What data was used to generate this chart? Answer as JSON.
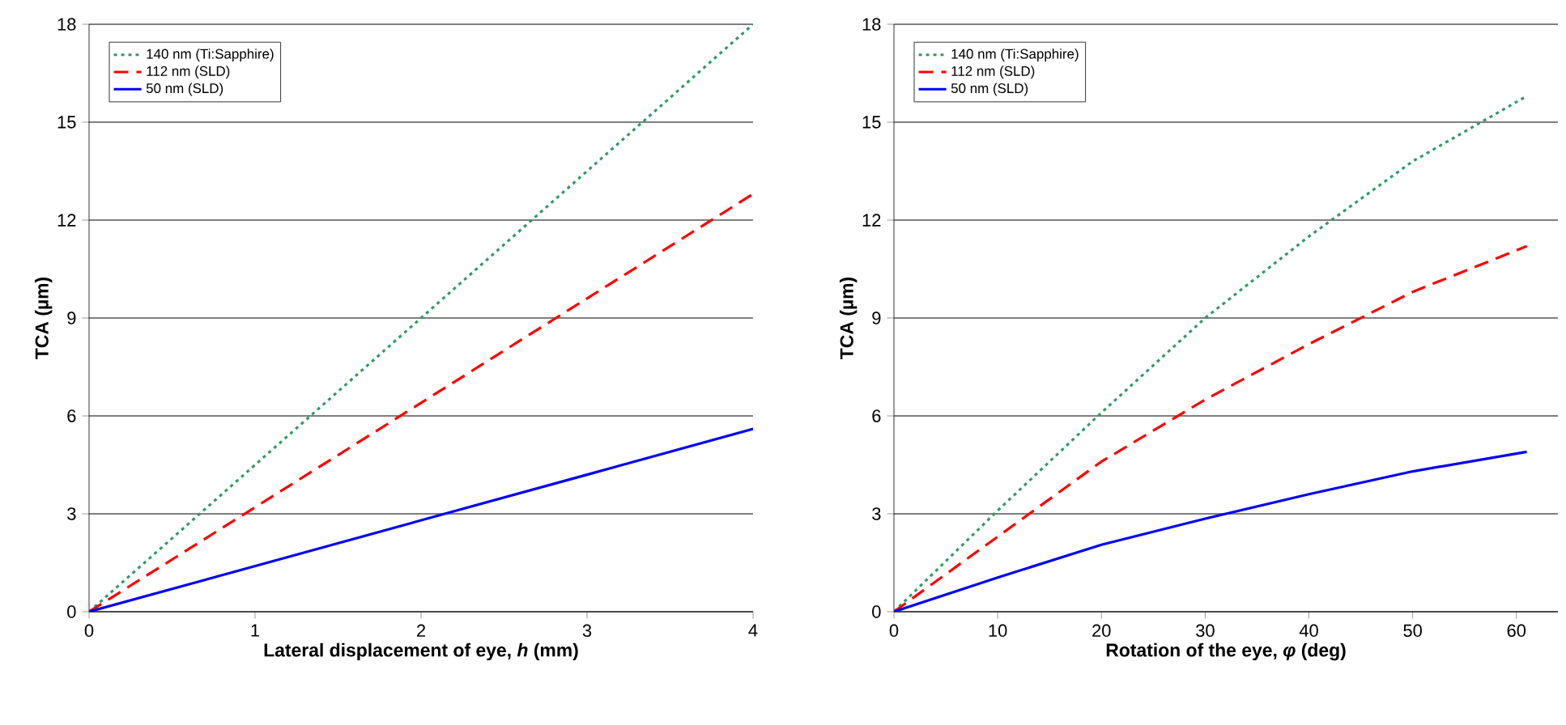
{
  "chart_data": [
    {
      "type": "line",
      "xlabel": "Lateral displacement of eye, *h* (mm)",
      "ylabel": "TCA (µm)",
      "xlim": [
        0,
        4
      ],
      "xticks": [
        0,
        1,
        2,
        3,
        4
      ],
      "ylim": [
        0,
        18
      ],
      "yticks": [
        0,
        3,
        6,
        9,
        12,
        15,
        18
      ],
      "grid": "y",
      "legend": "top left",
      "series": [
        {
          "name": "140 nm (Ti:Sapphire)",
          "color": "#339966",
          "line_style": "dotted",
          "x": [
            0,
            1,
            2,
            3,
            4
          ],
          "values": [
            0,
            4.5,
            9,
            13.5,
            18
          ]
        },
        {
          "name": "112 nm (SLD)",
          "color": "#ff0000",
          "line_style": "dashed",
          "x": [
            0,
            1,
            2,
            3,
            4
          ],
          "values": [
            0,
            3.2,
            6.4,
            9.6,
            12.8
          ]
        },
        {
          "name": "50 nm (SLD)",
          "color": "#0000ff",
          "line_style": "solid",
          "x": [
            0,
            1,
            2,
            3,
            4
          ],
          "values": [
            0,
            1.4,
            2.8,
            4.2,
            5.6
          ]
        }
      ]
    },
    {
      "type": "line",
      "xlabel": "Rotation of the eye, *φ* (deg)",
      "ylabel": "TCA (µm)",
      "xlim": [
        0,
        64
      ],
      "xticks": [
        0,
        10,
        20,
        30,
        40,
        50,
        60
      ],
      "ylim": [
        0,
        18
      ],
      "yticks": [
        0,
        3,
        6,
        9,
        12,
        15,
        18
      ],
      "grid": "y",
      "legend": "top left",
      "series": [
        {
          "name": "140 nm (Ti:Sapphire)",
          "color": "#339966",
          "line_style": "dotted",
          "x": [
            0,
            10,
            20,
            30,
            40,
            50,
            61
          ],
          "values": [
            0,
            3.1,
            6.1,
            9,
            11.5,
            13.8,
            15.8
          ]
        },
        {
          "name": "112 nm (SLD)",
          "color": "#ff0000",
          "line_style": "dashed",
          "x": [
            0,
            10,
            20,
            30,
            40,
            50,
            61
          ],
          "values": [
            0,
            2.3,
            4.6,
            6.5,
            8.2,
            9.8,
            11.2
          ]
        },
        {
          "name": "50 nm (SLD)",
          "color": "#0000ff",
          "line_style": "solid",
          "x": [
            0,
            10,
            20,
            30,
            40,
            50,
            61
          ],
          "values": [
            0,
            1.05,
            2.05,
            2.85,
            3.6,
            4.3,
            4.9
          ]
        }
      ]
    }
  ]
}
